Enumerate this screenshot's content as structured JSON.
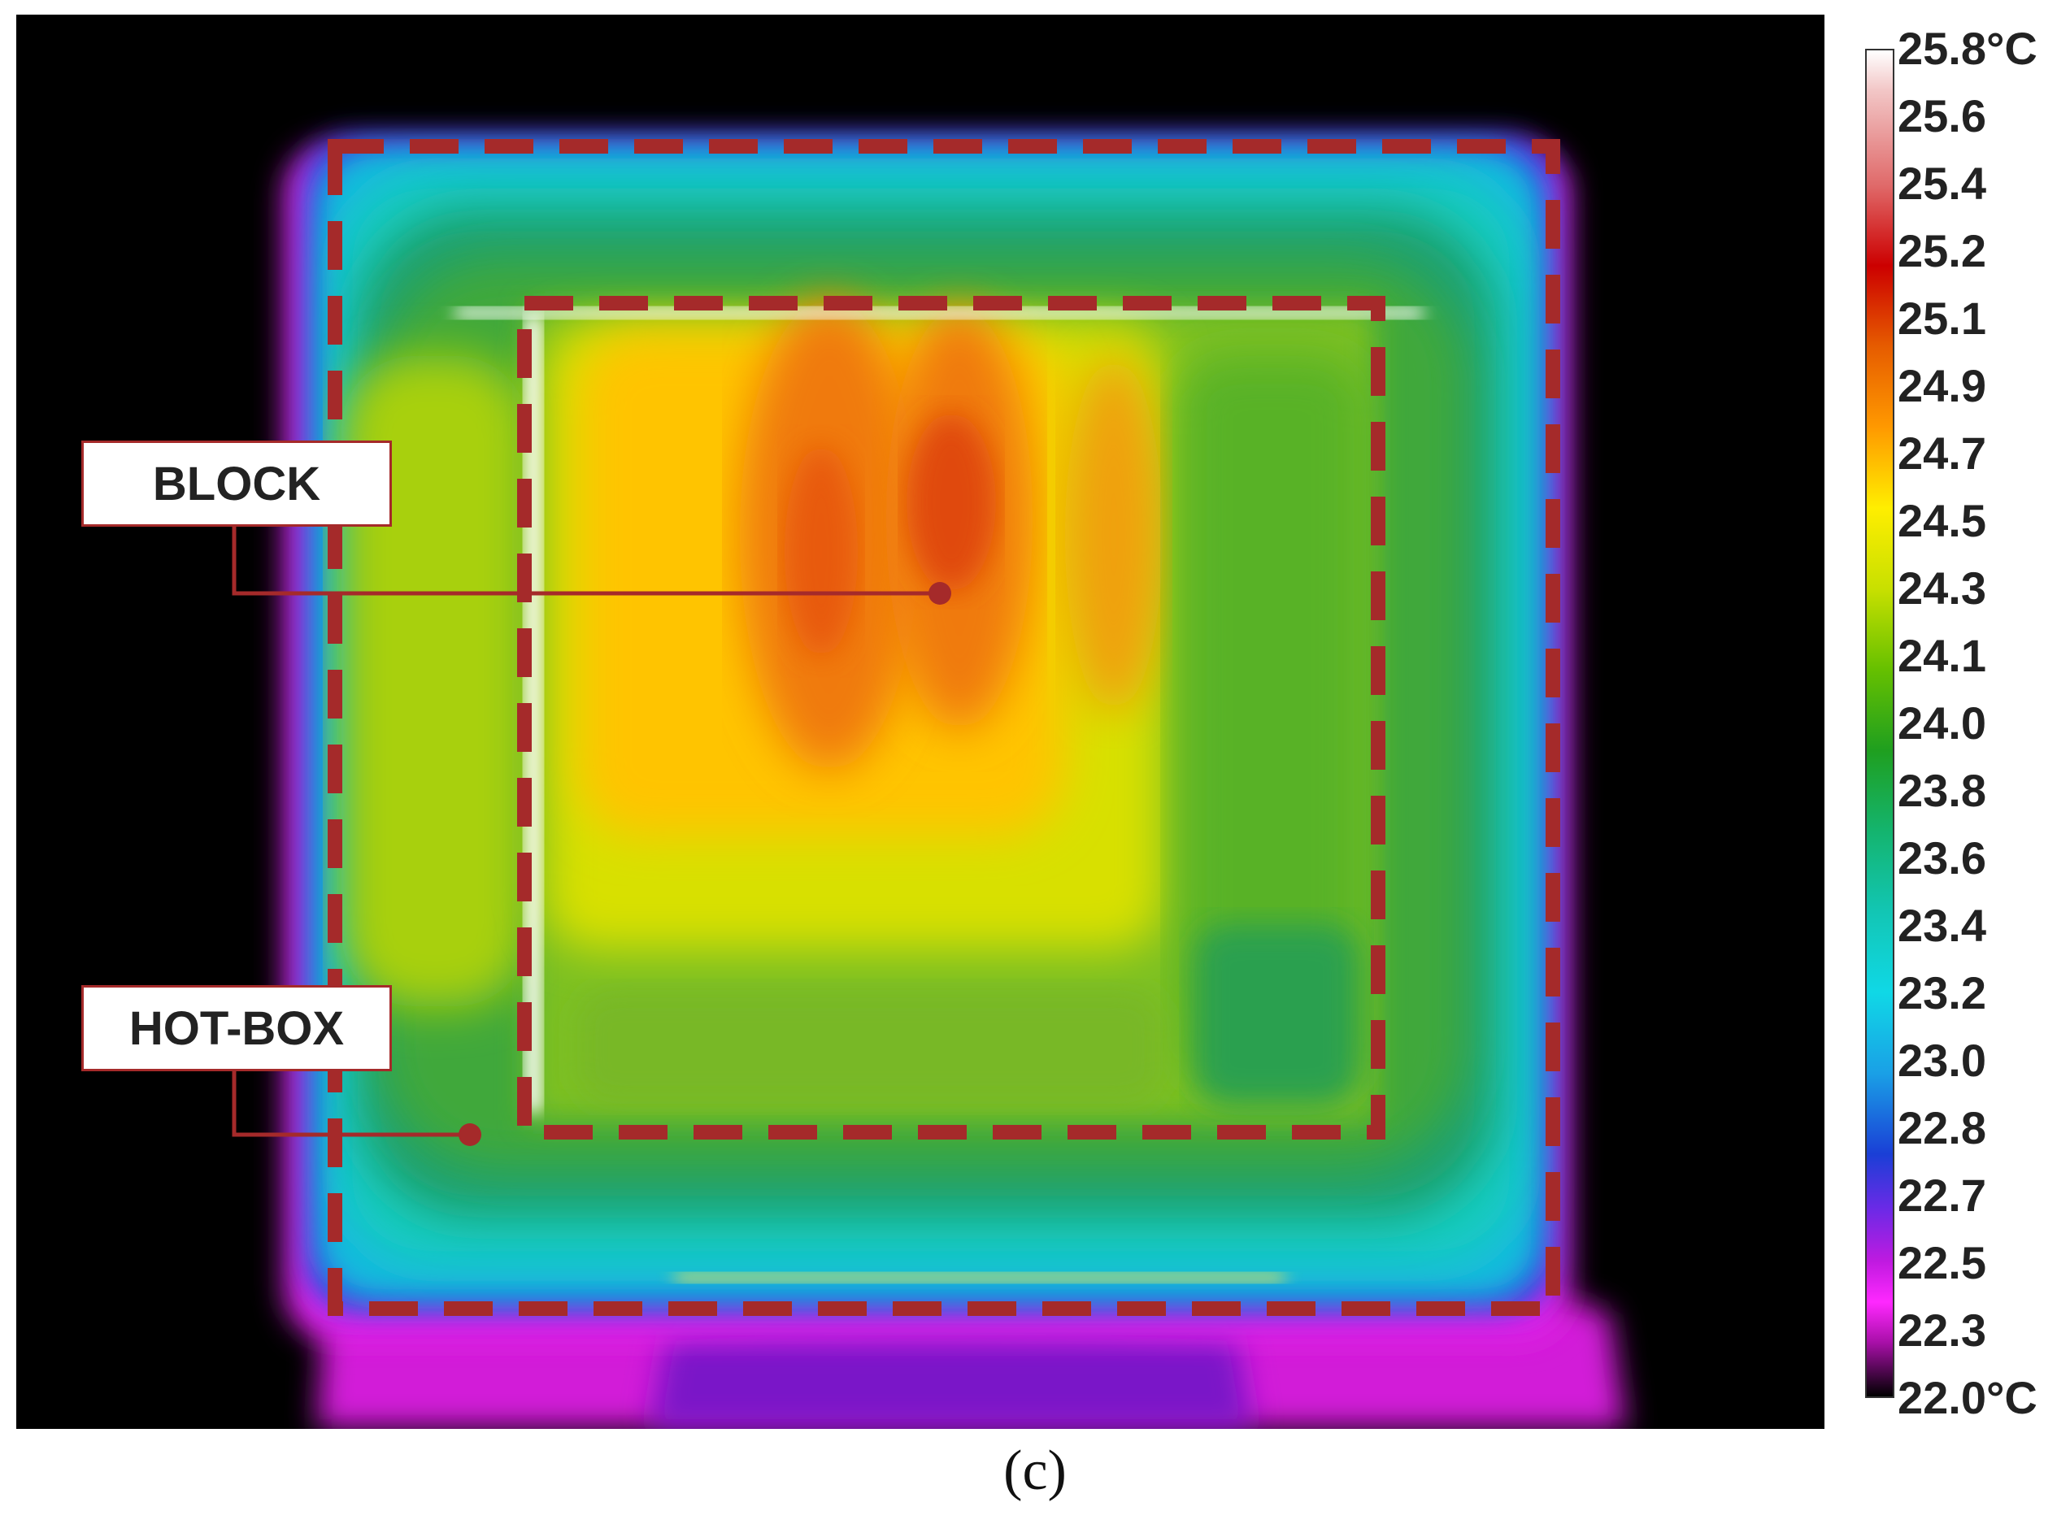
{
  "figure": {
    "panel_label": "(c)"
  },
  "labels": {
    "block": "BLOCK",
    "hot_box": "HOT-BOX"
  },
  "colorbar": {
    "ticks": [
      "25.8°C",
      "25.6",
      "25.4",
      "25.2",
      "25.1",
      "24.9",
      "24.7",
      "24.5",
      "24.3",
      "24.1",
      "24.0",
      "23.8",
      "23.6",
      "23.4",
      "23.2",
      "23.0",
      "22.8",
      "22.7",
      "22.5",
      "22.3",
      "22.0°C"
    ],
    "max_celsius": 25.8,
    "min_celsius": 22.0
  },
  "colors": {
    "dashed_outline": "#a52a2a",
    "background": "#000000"
  }
}
